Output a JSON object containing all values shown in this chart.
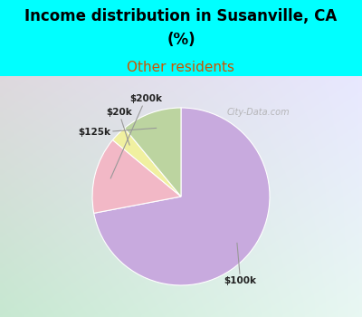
{
  "title_line1": "Income distribution in Susanville, CA",
  "title_line2": "(%)",
  "subtitle": "Other residents",
  "title_color": "#000000",
  "subtitle_color": "#cc5500",
  "bg_color": "#00ffff",
  "chart_bg_top": "#e8f8f8",
  "chart_bg_bottom": "#c8e8c8",
  "labels": [
    "$100k",
    "$200k",
    "$20k",
    "$125k"
  ],
  "values": [
    72,
    14,
    3,
    11
  ],
  "colors": [
    "#c8aade",
    "#f2b8c6",
    "#f0f0a0",
    "#bcd4a0"
  ],
  "watermark": "City-Data.com",
  "title_fontsize": 12,
  "subtitle_fontsize": 11
}
